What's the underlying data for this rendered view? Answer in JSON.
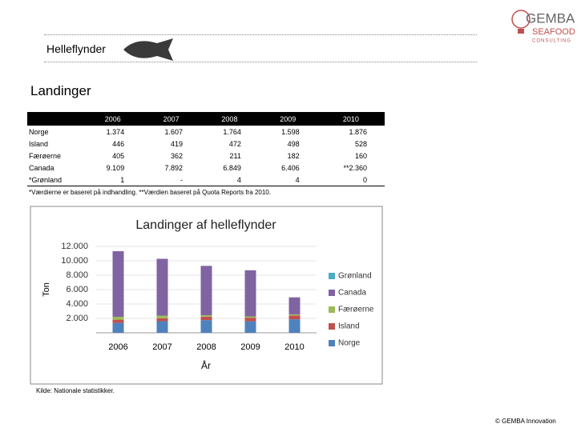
{
  "header": {
    "title": "Helleflynder",
    "logo": [
      "GEMBA",
      "SEAFOOD",
      "CONSULTING"
    ]
  },
  "section": "Landinger",
  "table": {
    "columns": [
      "2006",
      "2007",
      "2008",
      "2009",
      "2010"
    ],
    "rows": [
      [
        "Norge",
        "1.374",
        "1.607",
        "1.764",
        "1.598",
        "1.876"
      ],
      [
        "Island",
        "446",
        "419",
        "472",
        "498",
        "528"
      ],
      [
        "Færøerne",
        "405",
        "362",
        "211",
        "182",
        "160"
      ],
      [
        "Canada",
        "9.109",
        "7.892",
        "6.849",
        "6.406",
        "**2.360"
      ],
      [
        "*Grønland",
        "1",
        "-",
        "4",
        "4",
        "0"
      ]
    ]
  },
  "footnote": "*Værdierne er baseret på indhandling. **Værdien baseret på Quota Reports fra 2010.",
  "chart_data": {
    "type": "stacked_bar",
    "title": "Landinger af helleflynder",
    "y_label": "Ton",
    "x_label": "År",
    "categories": [
      "2006",
      "2007",
      "2008",
      "2009",
      "2010"
    ],
    "series": [
      {
        "name": "Norge",
        "color": "#4f81bd",
        "values": [
          1374,
          1607,
          1764,
          1598,
          1876
        ]
      },
      {
        "name": "Island",
        "color": "#c0504d",
        "values": [
          446,
          419,
          472,
          498,
          528
        ]
      },
      {
        "name": "Færøerne",
        "color": "#9bbb59",
        "values": [
          405,
          362,
          211,
          182,
          160
        ]
      },
      {
        "name": "Canada",
        "color": "#8064a2",
        "values": [
          9109,
          7892,
          6849,
          6406,
          2360
        ]
      },
      {
        "name": "Grønland",
        "color": "#4bacc6",
        "values": [
          1,
          0,
          4,
          4,
          0
        ]
      }
    ],
    "ylim": [
      0,
      12000
    ],
    "yticks": [
      {
        "value": 2000,
        "label": "2.000"
      },
      {
        "value": 4000,
        "label": "4.000"
      },
      {
        "value": 6000,
        "label": "6.000"
      },
      {
        "value": 8000,
        "label": "8.000"
      },
      {
        "value": 10000,
        "label": "10.000"
      },
      {
        "value": 12000,
        "label": "12.000"
      }
    ],
    "grid": true
  },
  "source": "Kilde: Nationale statistikker.",
  "footer": "© GEMBA Innovation"
}
